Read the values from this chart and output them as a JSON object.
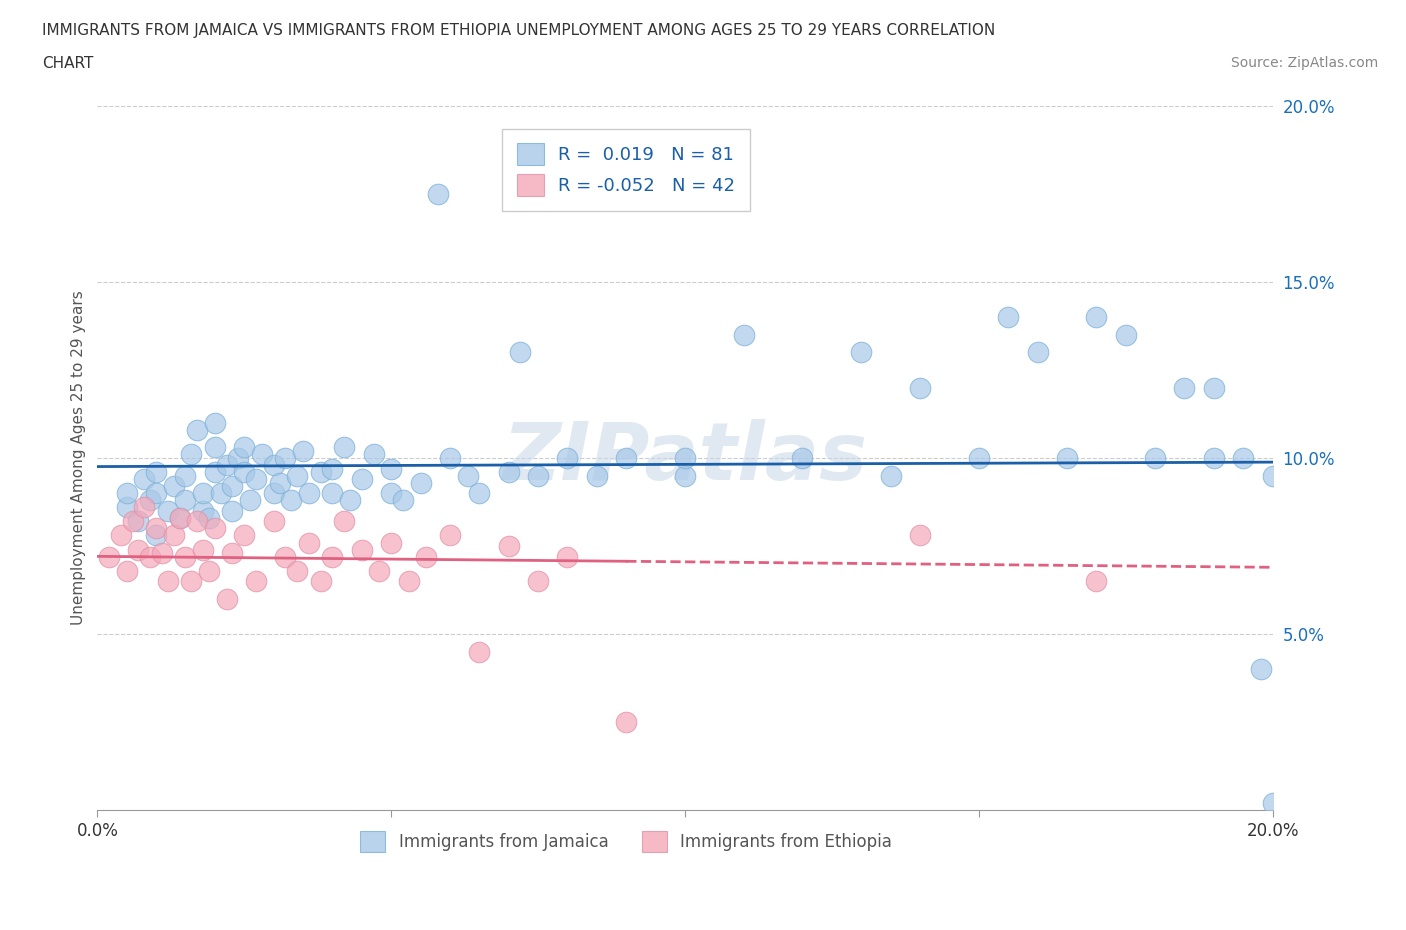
{
  "title_line1": "IMMIGRANTS FROM JAMAICA VS IMMIGRANTS FROM ETHIOPIA UNEMPLOYMENT AMONG AGES 25 TO 29 YEARS CORRELATION",
  "title_line2": "CHART",
  "source": "Source: ZipAtlas.com",
  "ylabel": "Unemployment Among Ages 25 to 29 years",
  "xlim": [
    0.0,
    0.2
  ],
  "ylim": [
    0.0,
    0.2
  ],
  "jamaica_color": "#a8c8e8",
  "ethiopia_color": "#f4a8b8",
  "jamaica_line_color": "#1a5fa8",
  "ethiopia_line_color": "#e06080",
  "jamaica_R": 0.019,
  "ethiopia_R": -0.052,
  "jamaica_x": [
    0.005,
    0.005,
    0.007,
    0.008,
    0.009,
    0.01,
    0.01,
    0.01,
    0.012,
    0.013,
    0.014,
    0.015,
    0.015,
    0.016,
    0.017,
    0.018,
    0.018,
    0.019,
    0.02,
    0.02,
    0.02,
    0.021,
    0.022,
    0.023,
    0.023,
    0.024,
    0.025,
    0.025,
    0.026,
    0.027,
    0.028,
    0.03,
    0.03,
    0.031,
    0.032,
    0.033,
    0.034,
    0.035,
    0.036,
    0.038,
    0.04,
    0.04,
    0.042,
    0.043,
    0.045,
    0.047,
    0.05,
    0.05,
    0.052,
    0.055,
    0.058,
    0.06,
    0.063,
    0.065,
    0.07,
    0.072,
    0.075,
    0.08,
    0.085,
    0.09,
    0.1,
    0.1,
    0.11,
    0.12,
    0.13,
    0.135,
    0.14,
    0.15,
    0.155,
    0.16,
    0.165,
    0.17,
    0.175,
    0.18,
    0.185,
    0.19,
    0.19,
    0.195,
    0.198,
    0.2,
    0.2
  ],
  "jamaica_y": [
    0.086,
    0.09,
    0.082,
    0.094,
    0.088,
    0.078,
    0.09,
    0.096,
    0.085,
    0.092,
    0.083,
    0.088,
    0.095,
    0.101,
    0.108,
    0.085,
    0.09,
    0.083,
    0.096,
    0.103,
    0.11,
    0.09,
    0.098,
    0.085,
    0.092,
    0.1,
    0.096,
    0.103,
    0.088,
    0.094,
    0.101,
    0.09,
    0.098,
    0.093,
    0.1,
    0.088,
    0.095,
    0.102,
    0.09,
    0.096,
    0.09,
    0.097,
    0.103,
    0.088,
    0.094,
    0.101,
    0.09,
    0.097,
    0.088,
    0.093,
    0.175,
    0.1,
    0.095,
    0.09,
    0.096,
    0.13,
    0.095,
    0.1,
    0.095,
    0.1,
    0.095,
    0.1,
    0.135,
    0.1,
    0.13,
    0.095,
    0.12,
    0.1,
    0.14,
    0.13,
    0.1,
    0.14,
    0.135,
    0.1,
    0.12,
    0.12,
    0.1,
    0.1,
    0.04,
    0.095,
    0.002
  ],
  "ethiopia_x": [
    0.002,
    0.004,
    0.005,
    0.006,
    0.007,
    0.008,
    0.009,
    0.01,
    0.011,
    0.012,
    0.013,
    0.014,
    0.015,
    0.016,
    0.017,
    0.018,
    0.019,
    0.02,
    0.022,
    0.023,
    0.025,
    0.027,
    0.03,
    0.032,
    0.034,
    0.036,
    0.038,
    0.04,
    0.042,
    0.045,
    0.048,
    0.05,
    0.053,
    0.056,
    0.06,
    0.065,
    0.07,
    0.075,
    0.08,
    0.09,
    0.14,
    0.17
  ],
  "ethiopia_y": [
    0.072,
    0.078,
    0.068,
    0.082,
    0.074,
    0.086,
    0.072,
    0.08,
    0.073,
    0.065,
    0.078,
    0.083,
    0.072,
    0.065,
    0.082,
    0.074,
    0.068,
    0.08,
    0.06,
    0.073,
    0.078,
    0.065,
    0.082,
    0.072,
    0.068,
    0.076,
    0.065,
    0.072,
    0.082,
    0.074,
    0.068,
    0.076,
    0.065,
    0.072,
    0.078,
    0.045,
    0.075,
    0.065,
    0.072,
    0.025,
    0.078,
    0.065
  ]
}
